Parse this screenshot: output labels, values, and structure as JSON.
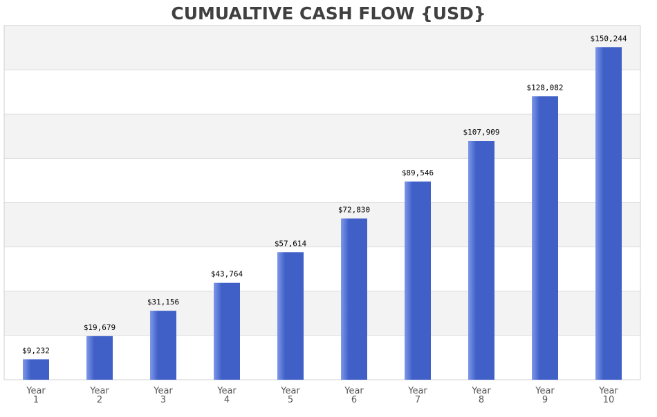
{
  "chart_data": {
    "type": "bar",
    "title": "CUMUALTIVE CASH FLOW {USD}",
    "categories": [
      [
        "Year",
        "1"
      ],
      [
        "Year",
        "2"
      ],
      [
        "Year",
        "3"
      ],
      [
        "Year",
        "4"
      ],
      [
        "Year",
        "5"
      ],
      [
        "Year",
        "6"
      ],
      [
        "Year",
        "7"
      ],
      [
        "Year",
        "8"
      ],
      [
        "Year",
        "9"
      ],
      [
        "Year",
        "10"
      ]
    ],
    "values": [
      9232,
      19679,
      31156,
      43764,
      57614,
      72830,
      89546,
      107909,
      128082,
      150244
    ],
    "value_labels": [
      "$9,232",
      "$19,679",
      "$31,156",
      "$43,764",
      "$57,614",
      "$72,830",
      "$89,546",
      "$107,909",
      "$128,082",
      "$150,244"
    ],
    "ylim": [
      0,
      160000
    ],
    "y_gridline_step": 20000,
    "grid": true,
    "legend": "none",
    "colors": {
      "bar": "#4060c8",
      "bar_highlight": "#7e98e8",
      "band_alt": "#f3f3f3",
      "band": "#ffffff",
      "grid": "#dcdcdc",
      "title": "#404040"
    }
  }
}
